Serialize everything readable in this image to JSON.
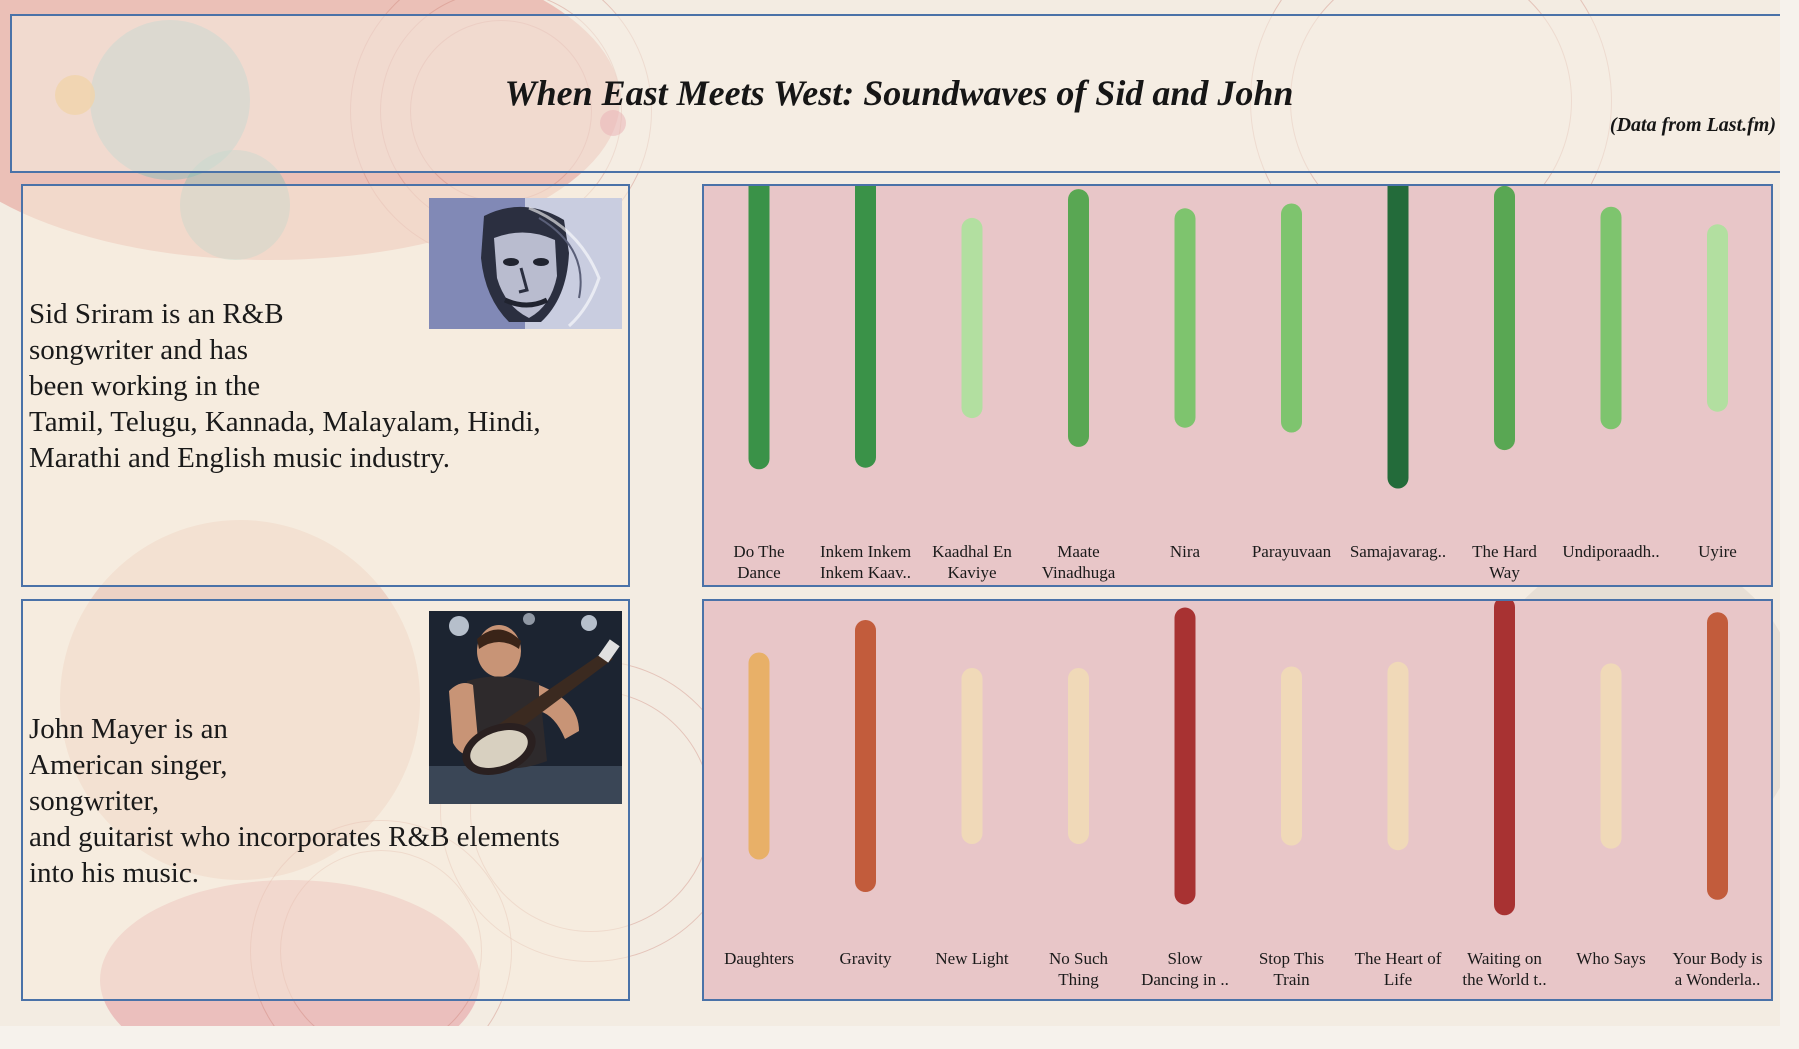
{
  "header": {
    "title": "When East Meets West: Soundwaves of Sid and John",
    "source": "(Data from Last.fm)"
  },
  "sid": {
    "bio_lines": [
      "Sid Sriram is an R&B",
      "songwriter and has",
      "been working in the",
      "Tamil, Telugu, Kannada, Malayalam, Hindi,",
      "Marathi and English music industry."
    ]
  },
  "john": {
    "bio_lines": [
      "John Mayer is an",
      "American singer,",
      "songwriter,",
      "and guitarist who incorporates R&B elements",
      "into his music."
    ]
  },
  "chart_data": [
    {
      "type": "bar",
      "artist": "Sid Sriram",
      "categories": [
        [
          "Do The",
          "Dance"
        ],
        [
          "Inkem Inkem",
          "Inkem Kaav.."
        ],
        [
          "Kaadhal En",
          "Kaviye"
        ],
        [
          "Maate",
          "Vinadhuga"
        ],
        [
          "Nira"
        ],
        [
          "Parayuvaan"
        ],
        [
          "Samajavarag.."
        ],
        [
          "The Hard",
          "Way"
        ],
        [
          "Undiporaadh.."
        ],
        [
          "Uyire"
        ]
      ],
      "values": [
        0.88,
        0.87,
        0.56,
        0.74,
        0.62,
        0.65,
        1.0,
        0.76,
        0.63,
        0.52
      ],
      "colors": [
        "#3a9248",
        "#3a9248",
        "#b2dfa0",
        "#59a753",
        "#7ec46e",
        "#7ec46e",
        "#236b3a",
        "#59a753",
        "#7ec46e",
        "#b2dfa0"
      ]
    },
    {
      "type": "bar",
      "artist": "John Mayer",
      "categories": [
        [
          "Daughters"
        ],
        [
          "Gravity"
        ],
        [
          "New Light"
        ],
        [
          "No Such",
          "Thing"
        ],
        [
          "Slow",
          "Dancing in .."
        ],
        [
          "Stop This",
          "Train"
        ],
        [
          "The Heart of",
          "Life"
        ],
        [
          "Waiting on",
          "the World t.."
        ],
        [
          "Who Says"
        ],
        [
          "Your Body is",
          "a Wonderla.."
        ]
      ],
      "values": [
        0.6,
        0.81,
        0.5,
        0.5,
        0.89,
        0.51,
        0.54,
        0.96,
        0.53,
        0.86
      ],
      "colors": [
        "#e8b068",
        "#c25c3c",
        "#f0d9b8",
        "#f0d9b8",
        "#a83232",
        "#f0d9b8",
        "#f0d9b8",
        "#a83232",
        "#f0d9b8",
        "#c25c3c"
      ]
    }
  ]
}
